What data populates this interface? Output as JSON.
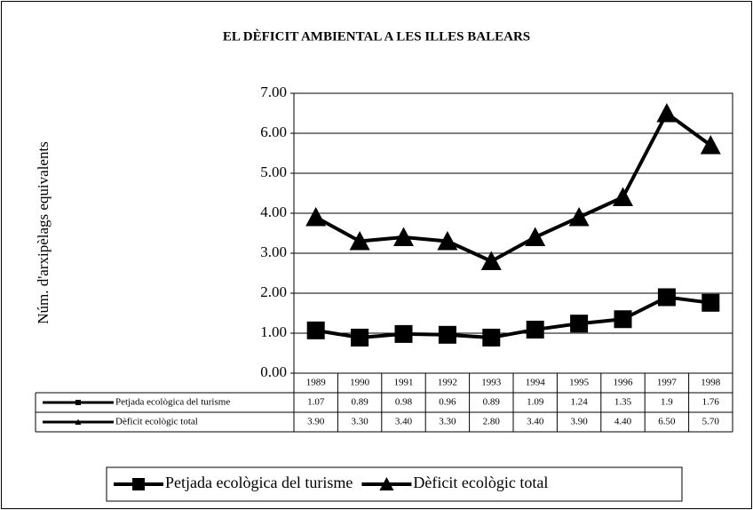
{
  "chart_data": {
    "type": "line",
    "title": "EL DÈFICIT AMBIENTAL A LES ILLES BALEARS",
    "y_label": "Núm. d'arxipèlags equivalents",
    "categories": [
      "1989",
      "1990",
      "1991",
      "1992",
      "1993",
      "1994",
      "1995",
      "1996",
      "1997",
      "1998"
    ],
    "series": [
      {
        "name": "Petjada ecològica del turisme",
        "color": "#000000",
        "marker": "square",
        "values": [
          1.07,
          0.89,
          0.98,
          0.96,
          0.89,
          1.09,
          1.24,
          1.35,
          1.9,
          1.76
        ]
      },
      {
        "name": "Dèficit ecològic total",
        "color": "#000000",
        "marker": "triangle",
        "values": [
          3.9,
          3.3,
          3.4,
          3.3,
          2.8,
          3.4,
          3.9,
          4.4,
          6.5,
          5.7
        ],
        "value_labels": [
          "3.90",
          "3.30",
          "3.40",
          "3.30",
          "2.80",
          "3.40",
          "3.90",
          "4.40",
          "6.50",
          "5.70"
        ]
      }
    ],
    "ylim": [
      0,
      7
    ],
    "yticks": [
      {
        "value": 0,
        "label": "0.00"
      },
      {
        "value": 1,
        "label": "1.00"
      },
      {
        "value": 2,
        "label": "2.00"
      },
      {
        "value": 3,
        "label": "3.00"
      },
      {
        "value": 4,
        "label": "4.00"
      },
      {
        "value": 5,
        "label": "5.00"
      },
      {
        "value": 6,
        "label": "6.00"
      },
      {
        "value": 7,
        "label": "7.00"
      }
    ],
    "grid": true,
    "legend": "bottom",
    "data_table": true
  }
}
